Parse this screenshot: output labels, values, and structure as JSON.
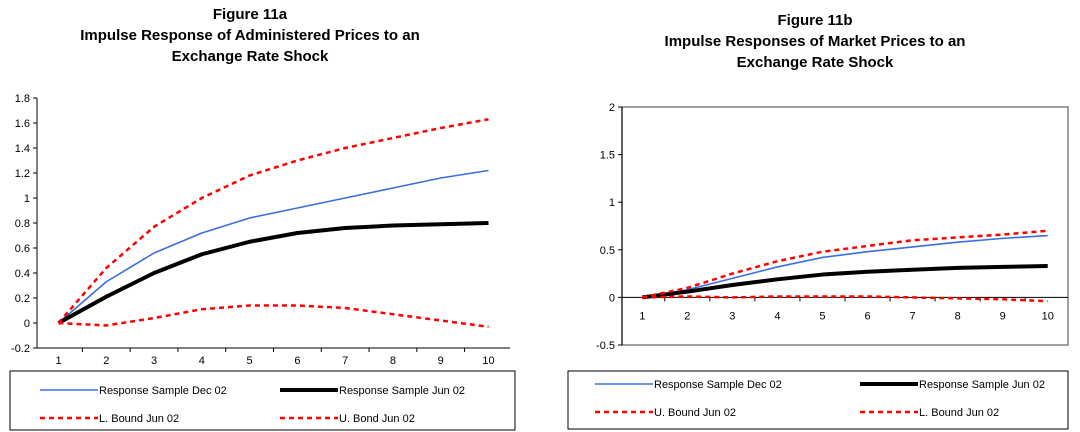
{
  "charts": {
    "a": {
      "title_lines": [
        "Figure 11a",
        "Impulse Response of Administered Prices to an",
        "Exchange Rate Shock"
      ]
    },
    "b": {
      "title_lines": [
        "Figure 11b",
        "Impulse Responses of Market Prices to an",
        "Exchange Rate Shock"
      ]
    }
  },
  "chart_data": [
    {
      "type": "line",
      "title": "Figure 11a Impulse Response of Administered Prices to an Exchange Rate Shock",
      "x": [
        1,
        2,
        3,
        4,
        5,
        6,
        7,
        8,
        9,
        10
      ],
      "ylim": [
        -0.2,
        1.8
      ],
      "yticks": [
        "-0.2",
        "0",
        "0.2",
        "0.4",
        "0.6",
        "0.8",
        "1",
        "1.2",
        "1.4",
        "1.6",
        "1.8"
      ],
      "xticks": [
        "1",
        "2",
        "3",
        "4",
        "5",
        "6",
        "7",
        "8",
        "9",
        "10"
      ],
      "grid": false,
      "legend_position": "bottom",
      "series": [
        {
          "name": "Response Sample Dec 02",
          "color": "#3a6fe0",
          "style": "solid-thin",
          "values": [
            0,
            0.33,
            0.56,
            0.72,
            0.84,
            0.92,
            1.0,
            1.08,
            1.16,
            1.22
          ]
        },
        {
          "name": "Response Sample Jun 02",
          "color": "#000000",
          "style": "solid-thick",
          "values": [
            0,
            0.21,
            0.4,
            0.55,
            0.65,
            0.72,
            0.76,
            0.78,
            0.79,
            0.8
          ]
        },
        {
          "name": "L. Bound Jun 02",
          "color": "#ff0000",
          "style": "dashed",
          "values": [
            0,
            -0.02,
            0.04,
            0.11,
            0.14,
            0.14,
            0.12,
            0.07,
            0.02,
            -0.03
          ]
        },
        {
          "name": "U. Bond Jun 02",
          "color": "#ff0000",
          "style": "dashed",
          "values": [
            0,
            0.44,
            0.77,
            1.0,
            1.18,
            1.3,
            1.4,
            1.48,
            1.56,
            1.63
          ]
        }
      ]
    },
    {
      "type": "line",
      "title": "Figure 11b Impulse Responses of Market Prices to an Exchange Rate Shock",
      "x": [
        1,
        2,
        3,
        4,
        5,
        6,
        7,
        8,
        9,
        10
      ],
      "ylim": [
        -0.5,
        2
      ],
      "yticks": [
        "-0.5",
        "0",
        "0.5",
        "1",
        "1.5",
        "2"
      ],
      "xticks": [
        "1",
        "2",
        "3",
        "4",
        "5",
        "6",
        "7",
        "8",
        "9",
        "10"
      ],
      "grid": false,
      "legend_position": "bottom",
      "series": [
        {
          "name": "Response Sample Dec 02",
          "color": "#3a6fe0",
          "style": "solid-thin",
          "values": [
            0,
            0.08,
            0.2,
            0.32,
            0.42,
            0.48,
            0.53,
            0.58,
            0.62,
            0.65
          ]
        },
        {
          "name": "Response Sample Jun 02",
          "color": "#000000",
          "style": "solid-thick",
          "values": [
            0,
            0.06,
            0.13,
            0.19,
            0.24,
            0.27,
            0.29,
            0.31,
            0.32,
            0.33
          ]
        },
        {
          "name": "U. Bound Jun 02",
          "color": "#ff0000",
          "style": "dashed",
          "values": [
            0,
            0.1,
            0.25,
            0.38,
            0.48,
            0.54,
            0.6,
            0.63,
            0.66,
            0.7
          ]
        },
        {
          "name": "L. Bound Jun 02",
          "color": "#ff0000",
          "style": "dashed",
          "values": [
            0,
            0.01,
            0.0,
            0.01,
            0.01,
            0.01,
            0.0,
            -0.01,
            -0.02,
            -0.04
          ]
        }
      ]
    }
  ]
}
